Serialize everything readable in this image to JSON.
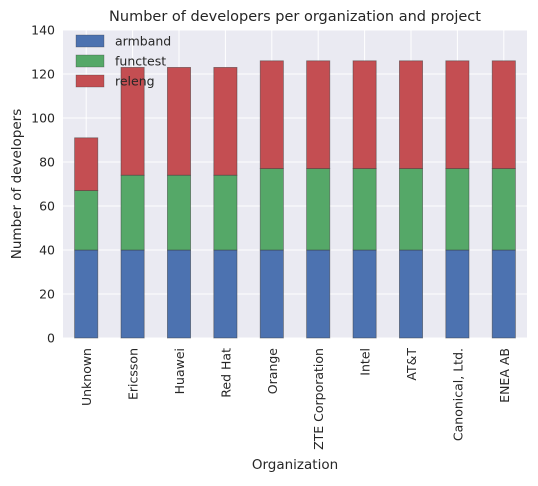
{
  "chart_data": {
    "type": "bar",
    "stacked": true,
    "title": "Number of developers per organization and project",
    "xlabel": "Organization",
    "ylabel": "Number of developers",
    "ylim": [
      0,
      140
    ],
    "yticks": [
      0,
      20,
      40,
      60,
      80,
      100,
      120,
      140
    ],
    "grid": true,
    "legend_position": "top-left",
    "categories": [
      "Unknown",
      "Ericsson",
      "Huawei",
      "Red Hat",
      "Orange",
      "ZTE Corporation",
      "Intel",
      "AT&T",
      "Canonical, Ltd.",
      "ENEA AB"
    ],
    "series": [
      {
        "name": "armband",
        "color": "#4c72b0",
        "values": [
          40,
          40,
          40,
          40,
          40,
          40,
          40,
          40,
          40,
          40
        ]
      },
      {
        "name": "functest",
        "color": "#55a868",
        "values": [
          27,
          34,
          34,
          34,
          37,
          37,
          37,
          37,
          37,
          37
        ]
      },
      {
        "name": "releng",
        "color": "#c44e52",
        "values": [
          24,
          49,
          49,
          49,
          49,
          49,
          49,
          49,
          49,
          49
        ]
      }
    ],
    "background_color": "#eaeaf2",
    "grid_color": "#ffffff"
  }
}
